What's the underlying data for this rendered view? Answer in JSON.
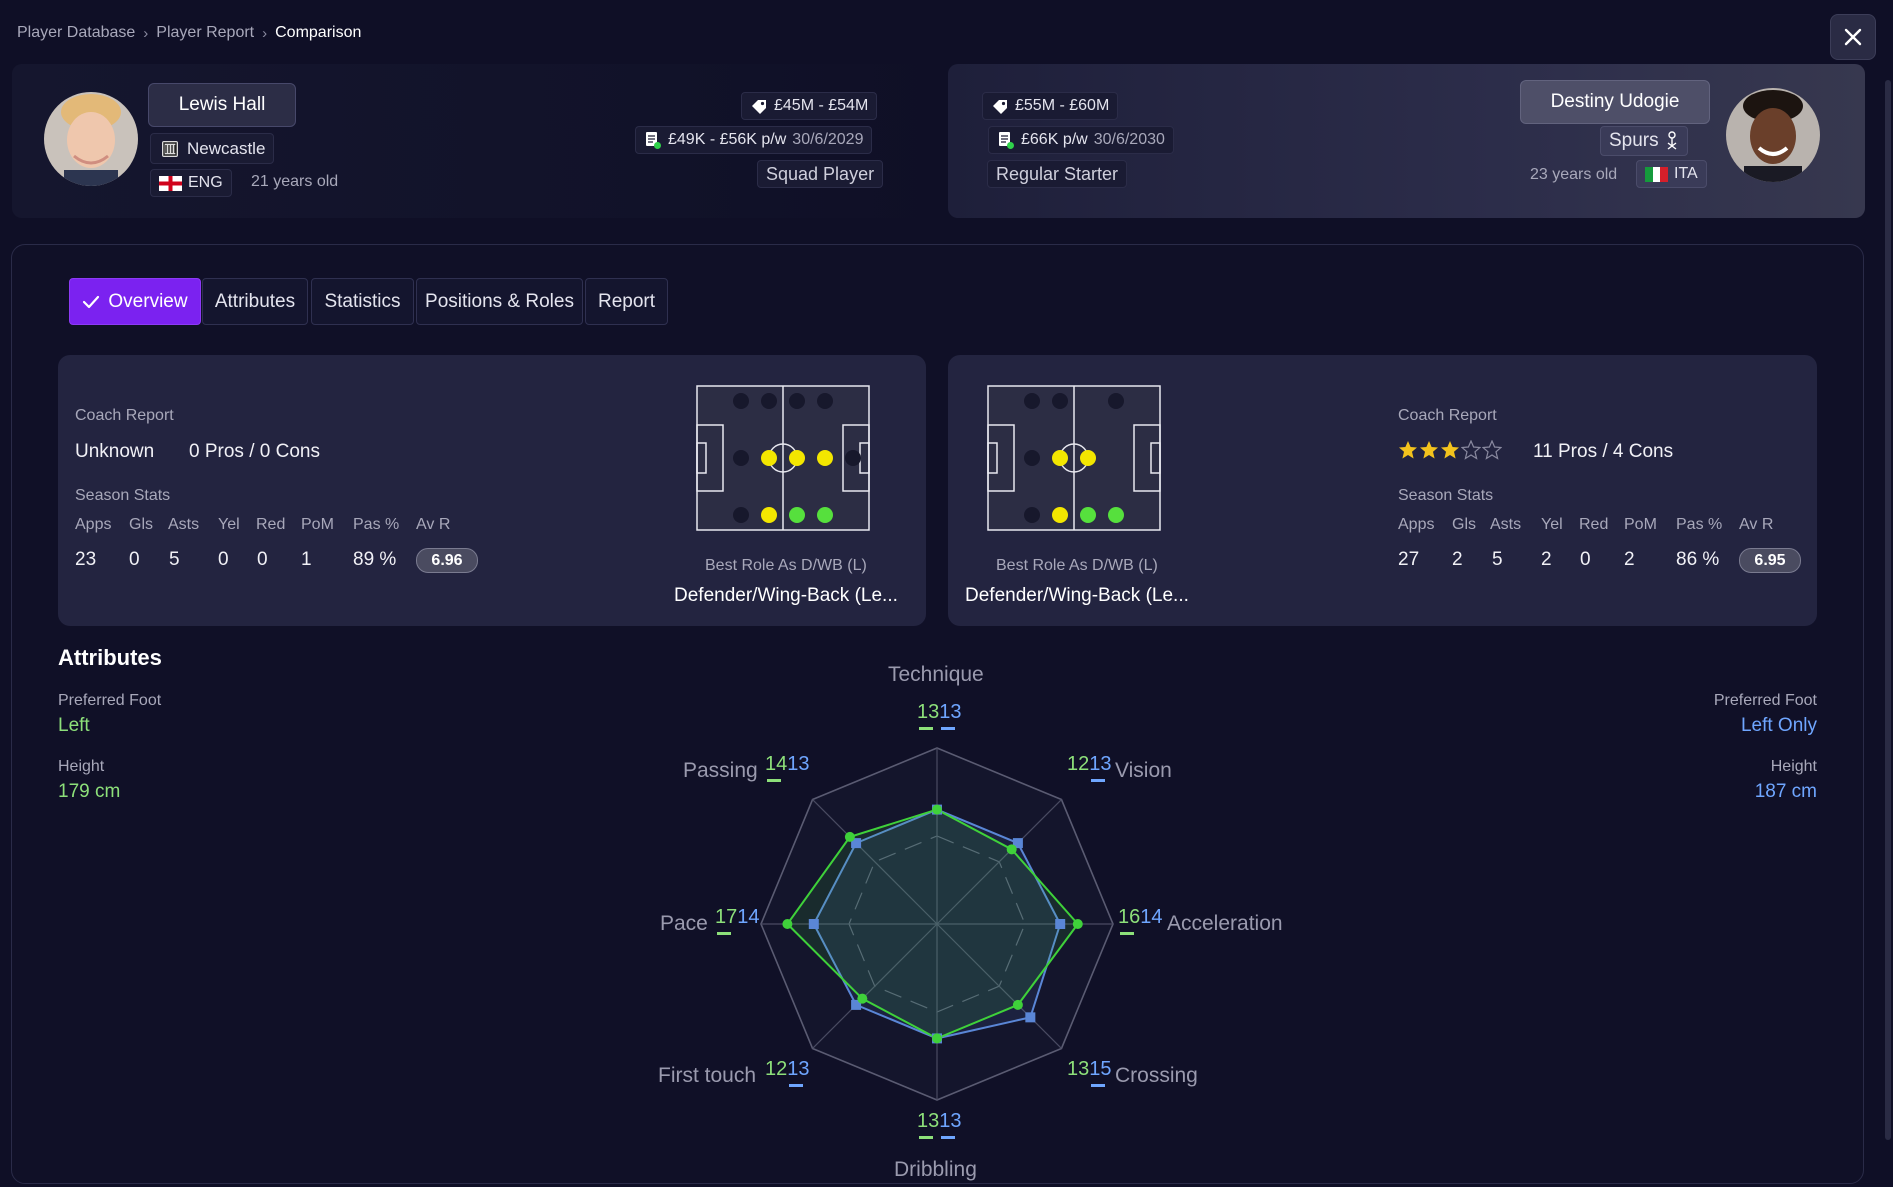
{
  "breadcrumb": [
    "Player Database",
    "Player Report",
    "Comparison"
  ],
  "player_left": {
    "name": "Lewis Hall",
    "club": "Newcastle",
    "nation": "ENG",
    "age": "21 years old",
    "value": "£45M - £54M",
    "wage": "£49K - £56K p/w",
    "contract": "30/6/2029",
    "status": "Squad Player"
  },
  "player_right": {
    "name": "Destiny Udogie",
    "club": "Spurs",
    "nation": "ITA",
    "age": "23 years old",
    "value": "£55M - £60M",
    "wage": "£66K p/w",
    "contract": "30/6/2030",
    "status": "Regular Starter"
  },
  "tabs": [
    "Overview",
    "Attributes",
    "Statistics",
    "Positions & Roles",
    "Report"
  ],
  "active_tab": "Overview",
  "overview_left": {
    "coach_report_label": "Coach Report",
    "coach_rating": "Unknown",
    "pros_cons": "0 Pros / 0 Cons",
    "season_stats_label": "Season Stats",
    "stat_headers": [
      "Apps",
      "Gls",
      "Asts",
      "Yel",
      "Red",
      "PoM",
      "Pas %",
      "Av R"
    ],
    "stat_values": [
      "23",
      "0",
      "5",
      "0",
      "0",
      "1",
      "89 %",
      "6.96"
    ],
    "best_role_label": "Best Role As D/WB (L)",
    "best_role": "Defender/Wing-Back (Le..."
  },
  "overview_right": {
    "coach_report_label": "Coach Report",
    "stars": 3,
    "stars_max": 5,
    "pros_cons": "11 Pros / 4 Cons",
    "season_stats_label": "Season Stats",
    "stat_headers": [
      "Apps",
      "Gls",
      "Asts",
      "Yel",
      "Red",
      "PoM",
      "Pas %",
      "Av R"
    ],
    "stat_values": [
      "27",
      "2",
      "5",
      "2",
      "0",
      "2",
      "86 %",
      "6.95"
    ],
    "best_role_label": "Best Role As D/WB (L)",
    "best_role": "Defender/Wing-Back (Le..."
  },
  "attributes": {
    "title": "Attributes",
    "left": {
      "foot_label": "Preferred Foot",
      "foot": "Left",
      "height_label": "Height",
      "height": "179 cm"
    },
    "right": {
      "foot_label": "Preferred Foot",
      "foot": "Left Only",
      "height_label": "Height",
      "height": "187 cm"
    }
  },
  "radar": {
    "axes": [
      "Technique",
      "Vision",
      "Acceleration",
      "Crossing",
      "Dribbling",
      "First touch",
      "Pace",
      "Passing"
    ],
    "left_values": [
      13,
      12,
      16,
      13,
      13,
      12,
      17,
      14
    ],
    "right_values": [
      13,
      13,
      14,
      15,
      13,
      13,
      14,
      13
    ],
    "max": 20,
    "left_color": "#3fd13a",
    "right_color": "#5a86d6"
  },
  "colors": {
    "accent": "#7b22f0",
    "left_player": "#8de07a",
    "right_player": "#6fa6ff",
    "pitch_dot_yellow": "#f3e600",
    "pitch_dot_green": "#56e03d"
  }
}
